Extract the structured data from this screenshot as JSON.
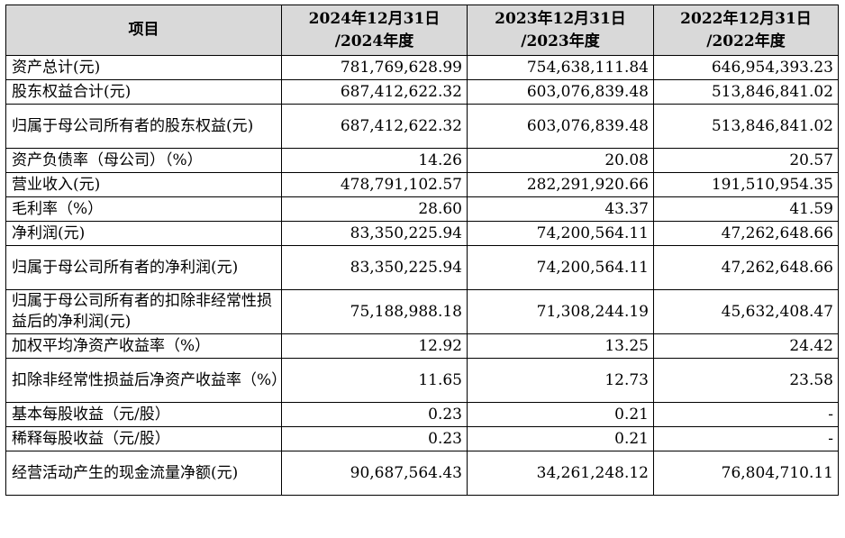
{
  "header": {
    "item": "项目",
    "col1_line1": "2024年12月31日",
    "col1_line2": "/2024年度",
    "col2_line1": "2023年12月31日",
    "col2_line2": "/2023年度",
    "col3_line1": "2022年12月31日",
    "col3_line2": "/2022年度"
  },
  "rows": [
    {
      "label": "资产总计(元)",
      "v1": "781,769,628.99",
      "v2": "754,638,111.84",
      "v3": "646,954,393.23"
    },
    {
      "label": "股东权益合计(元)",
      "v1": "687,412,622.32",
      "v2": "603,076,839.48",
      "v3": "513,846,841.02"
    },
    {
      "label": "归属于母公司所有者的股东权益(元)",
      "v1": "687,412,622.32",
      "v2": "603,076,839.48",
      "v3": "513,846,841.02"
    },
    {
      "label": "资产负债率（母公司）（%）",
      "v1": "14.26",
      "v2": "20.08",
      "v3": "20.57"
    },
    {
      "label": "营业收入(元)",
      "v1": "478,791,102.57",
      "v2": "282,291,920.66",
      "v3": "191,510,954.35"
    },
    {
      "label": "毛利率（%）",
      "v1": "28.60",
      "v2": "43.37",
      "v3": "41.59"
    },
    {
      "label": "净利润(元)",
      "v1": "83,350,225.94",
      "v2": "74,200,564.11",
      "v3": "47,262,648.66"
    },
    {
      "label": "归属于母公司所有者的净利润(元)",
      "v1": "83,350,225.94",
      "v2": "74,200,564.11",
      "v3": "47,262,648.66"
    },
    {
      "label": "归属于母公司所有者的扣除非经常性损益后的净利润(元)",
      "v1": "75,188,988.18",
      "v2": "71,308,244.19",
      "v3": "45,632,408.47"
    },
    {
      "label": "加权平均净资产收益率（%）",
      "v1": "12.92",
      "v2": "13.25",
      "v3": "24.42"
    },
    {
      "label": "扣除非经常性损益后净资产收益率（%）",
      "v1": "11.65",
      "v2": "12.73",
      "v3": "23.58"
    },
    {
      "label": "基本每股收益（元/股）",
      "v1": "0.23",
      "v2": "0.21",
      "v3": "-"
    },
    {
      "label": "稀释每股收益（元/股）",
      "v1": "0.23",
      "v2": "0.21",
      "v3": "-"
    },
    {
      "label": "经营活动产生的现金流量净额(元)",
      "v1": "90,687,564.43",
      "v2": "34,261,248.12",
      "v3": "76,804,710.11"
    }
  ]
}
